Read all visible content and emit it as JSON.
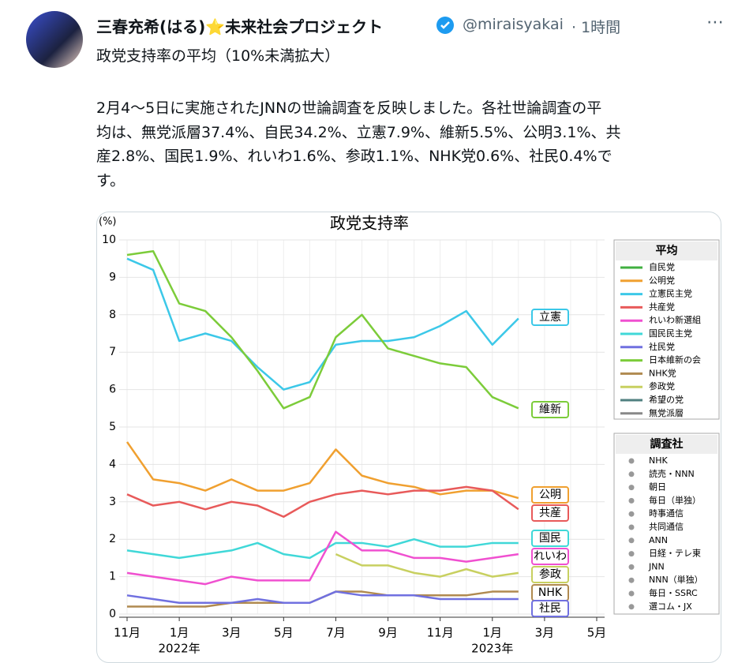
{
  "post": {
    "author_name": "三春充希(はる)⭐未来社会プロジェクト",
    "handle": "@miraisyakai",
    "time": "· 1時間",
    "title_line": "政党支持率の平均（10%未満拡大）",
    "body_lines": [
      "2月4～5日に実施されたJNNの世論調査を反映しました。各社世論調査の平",
      "均は、無党派層37.4%、自民34.2%、立憲7.9%、維新5.5%、公明3.1%、共",
      "産2.8%、国民1.9%、れいわ1.6%、参政1.1%、NHK党0.6%、社民0.4%で",
      "す。"
    ]
  },
  "chart_data": {
    "type": "line",
    "title": "政党支持率",
    "y_unit": "(%)",
    "categories": [
      "11月",
      null,
      "1月",
      null,
      "3月",
      null,
      "5月",
      null,
      "7月",
      null,
      "9月",
      null,
      "11月",
      null,
      "1月",
      null,
      "3月",
      null,
      "5月"
    ],
    "year_labels": [
      "2022年",
      "2023年"
    ],
    "ylim": [
      0,
      10
    ],
    "yticks": [
      0,
      1,
      2,
      3,
      4,
      5,
      6,
      7,
      8,
      9,
      10
    ],
    "grid": true,
    "series": [
      {
        "name": "立憲",
        "color": "#3cc8e8",
        "values": [
          9.5,
          9.2,
          7.3,
          7.5,
          7.3,
          6.6,
          6.0,
          6.2,
          7.2,
          7.3,
          7.3,
          7.4,
          7.7,
          8.1,
          7.2,
          7.9,
          null,
          null,
          null
        ]
      },
      {
        "name": "維新",
        "color": "#7ccc3a",
        "values": [
          9.6,
          9.7,
          8.3,
          8.1,
          7.4,
          6.5,
          5.5,
          5.8,
          7.4,
          8.0,
          7.1,
          6.9,
          6.7,
          6.6,
          5.8,
          5.5,
          null,
          null,
          null
        ]
      },
      {
        "name": "公明",
        "color": "#f0a030",
        "values": [
          4.6,
          3.6,
          3.5,
          3.3,
          3.6,
          3.3,
          3.3,
          3.5,
          4.4,
          3.7,
          3.5,
          3.4,
          3.2,
          3.3,
          3.3,
          3.1,
          null,
          null,
          null
        ]
      },
      {
        "name": "共産",
        "color": "#e85a5a",
        "values": [
          3.2,
          2.9,
          3.0,
          2.8,
          3.0,
          2.9,
          2.6,
          3.0,
          3.2,
          3.3,
          3.2,
          3.3,
          3.3,
          3.4,
          3.3,
          2.8,
          null,
          null,
          null
        ]
      },
      {
        "name": "国民",
        "color": "#40d8d8",
        "values": [
          1.7,
          1.6,
          1.5,
          1.6,
          1.7,
          1.9,
          1.6,
          1.5,
          1.9,
          1.9,
          1.8,
          2.0,
          1.8,
          1.8,
          1.9,
          1.9,
          null,
          null,
          null
        ]
      },
      {
        "name": "れいわ",
        "color": "#f050d0",
        "values": [
          1.1,
          1.0,
          0.9,
          0.8,
          1.0,
          0.9,
          0.9,
          0.9,
          2.2,
          1.7,
          1.7,
          1.5,
          1.5,
          1.4,
          1.5,
          1.6,
          null,
          null,
          null
        ]
      },
      {
        "name": "参政",
        "color": "#c8d060",
        "values": [
          null,
          null,
          null,
          null,
          null,
          null,
          null,
          null,
          1.6,
          1.3,
          1.3,
          1.1,
          1.0,
          1.2,
          1.0,
          1.1,
          null,
          null,
          null
        ]
      },
      {
        "name": "NHK",
        "color": "#b08a50",
        "values": [
          0.2,
          0.2,
          0.2,
          0.2,
          0.3,
          0.3,
          0.3,
          0.3,
          0.6,
          0.6,
          0.5,
          0.5,
          0.5,
          0.5,
          0.6,
          0.6,
          null,
          null,
          null
        ]
      },
      {
        "name": "社民",
        "color": "#7070e0",
        "values": [
          0.5,
          0.4,
          0.3,
          0.3,
          0.3,
          0.4,
          0.3,
          0.3,
          0.6,
          0.5,
          0.5,
          0.5,
          0.4,
          0.4,
          0.4,
          0.4,
          null,
          null,
          null
        ]
      }
    ],
    "legend_title": "平均",
    "legend": [
      {
        "name": "自民党",
        "color": "#40b040"
      },
      {
        "name": "公明党",
        "color": "#f0a030"
      },
      {
        "name": "立憲民主党",
        "color": "#3cc8e8"
      },
      {
        "name": "共産党",
        "color": "#e85a5a"
      },
      {
        "name": "れいわ新選組",
        "color": "#f050d0"
      },
      {
        "name": "国民民主党",
        "color": "#40d8d8"
      },
      {
        "name": "社民党",
        "color": "#7070e0"
      },
      {
        "name": "日本維新の会",
        "color": "#7ccc3a"
      },
      {
        "name": "NHK党",
        "color": "#b08a50"
      },
      {
        "name": "参政党",
        "color": "#c8d060"
      },
      {
        "name": "希望の党",
        "color": "#508080"
      },
      {
        "name": "無党派層",
        "color": "#888888"
      }
    ],
    "pollster_title": "調査社",
    "pollsters": [
      "NHK",
      "読売・NNN",
      "朝日",
      "毎日（単独）",
      "時事通信",
      "共同通信",
      "ANN",
      "日経・テレ東",
      "JNN",
      "NNN（単独）",
      "毎日・SSRC",
      "選コム・JX"
    ]
  }
}
